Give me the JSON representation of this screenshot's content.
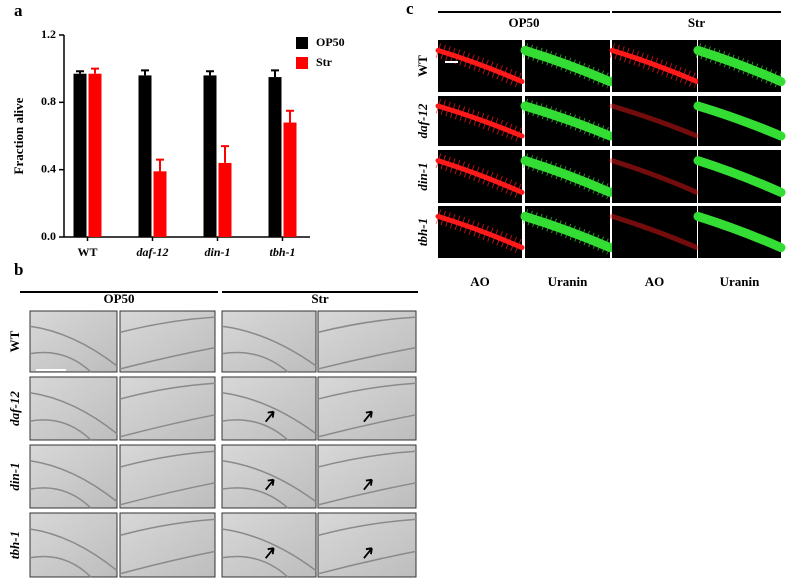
{
  "chart_data": {
    "type": "bar",
    "panel_label": "a",
    "ylabel": "Fraction alive",
    "categories": [
      "WT",
      "daf-12",
      "din-1",
      "tbh-1"
    ],
    "series": [
      {
        "name": "OP50",
        "color": "#000000",
        "values": [
          0.97,
          0.96,
          0.96,
          0.95
        ],
        "errors": [
          0.015,
          0.03,
          0.025,
          0.04
        ]
      },
      {
        "name": "Str",
        "color": "#ff0000",
        "values": [
          0.97,
          0.39,
          0.44,
          0.68
        ],
        "errors": [
          0.03,
          0.07,
          0.1,
          0.07
        ]
      }
    ],
    "ylim": [
      0,
      1.2
    ],
    "yticks": [
      {
        "value": 0,
        "label": "0.0"
      },
      0.4,
      0.8,
      1.2
    ]
  },
  "panel_b": {
    "label": "b",
    "conditions": [
      "OP50",
      "Str"
    ],
    "rows": [
      "WT",
      "daf-12",
      "din-1",
      "tbh-1"
    ]
  },
  "panel_c": {
    "label": "c",
    "conditions": [
      "OP50",
      "Str"
    ],
    "rows": [
      "WT",
      "daf-12",
      "din-1",
      "tbh-1"
    ],
    "columns": [
      "AO",
      "Uranin",
      "AO",
      "Uranin"
    ]
  }
}
